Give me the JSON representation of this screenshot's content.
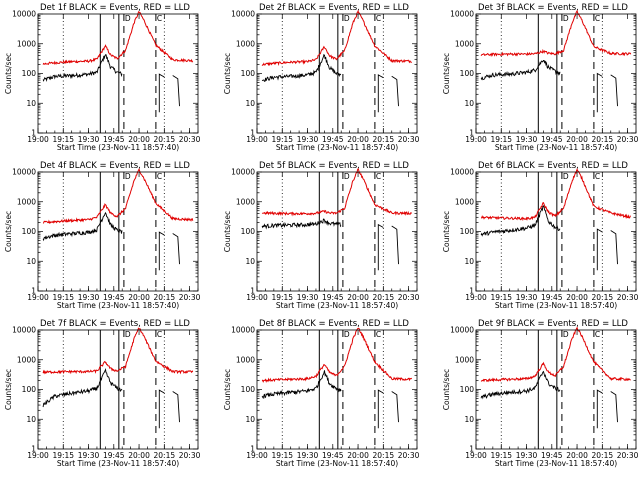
{
  "colors": {
    "events": "#000000",
    "lld": "#e00000",
    "background": "#ffffff"
  },
  "ylabel": "Counts/sec",
  "xlabel": "Start Time (23-Nov-11 18:57:40)",
  "x_tick_labels": [
    "19:00",
    "19:15",
    "19:30",
    "19:45",
    "20:00",
    "20:15",
    "20:30"
  ],
  "y_tick_labels": [
    "1",
    "10",
    "100",
    "1000",
    "10000"
  ],
  "markers": {
    "dotted": [
      "19:15",
      "20:15"
    ],
    "solid": [
      "19:37",
      "19:48"
    ],
    "dashed": [
      "19:51",
      "20:10"
    ]
  },
  "panel_letters": [
    "D",
    "C"
  ],
  "chart_data": [
    {
      "type": "line",
      "title": "Det 1f BLACK = Events, RED = LLD",
      "xlabel": "Start Time (23-Nov-11 18:57:40)",
      "ylabel": "Counts/sec",
      "yscale": "log",
      "ylim": [
        1,
        10000
      ],
      "xlim": [
        "19:00",
        "20:35"
      ],
      "series": [
        {
          "name": "Events",
          "x": [
            "19:03",
            "19:10",
            "19:20",
            "19:30",
            "19:35",
            "19:40",
            "19:43",
            "19:47",
            "19:50"
          ],
          "y": [
            60,
            80,
            85,
            95,
            110,
            450,
            170,
            110,
            95
          ]
        },
        {
          "name": "LLD",
          "x": [
            "19:03",
            "19:10",
            "19:20",
            "19:30",
            "19:35",
            "19:40",
            "19:43",
            "19:47",
            "19:52",
            "19:57",
            "20:00",
            "20:03",
            "20:10",
            "20:20",
            "20:32"
          ],
          "y": [
            210,
            230,
            250,
            260,
            300,
            850,
            420,
            320,
            600,
            5000,
            12000,
            6000,
            900,
            290,
            270
          ]
        }
      ]
    },
    {
      "type": "line",
      "title": "Det 2f BLACK = Events, RED = LLD",
      "xlabel": "Start Time (23-Nov-11 18:57:40)",
      "ylabel": "Counts/sec",
      "yscale": "log",
      "ylim": [
        1,
        10000
      ],
      "xlim": [
        "19:00",
        "20:35"
      ],
      "series": [
        {
          "name": "Events",
          "x": [
            "19:03",
            "19:10",
            "19:20",
            "19:30",
            "19:35",
            "19:40",
            "19:43",
            "19:47",
            "19:50"
          ],
          "y": [
            60,
            75,
            80,
            90,
            110,
            420,
            160,
            100,
            90
          ]
        },
        {
          "name": "LLD",
          "x": [
            "19:03",
            "19:10",
            "19:20",
            "19:30",
            "19:35",
            "19:40",
            "19:43",
            "19:47",
            "19:52",
            "19:57",
            "20:00",
            "20:03",
            "20:10",
            "20:20",
            "20:32"
          ],
          "y": [
            200,
            220,
            240,
            250,
            290,
            800,
            400,
            300,
            580,
            5000,
            12000,
            6000,
            850,
            270,
            260
          ]
        }
      ]
    },
    {
      "type": "line",
      "title": "Det 3f BLACK = Events, RED = LLD",
      "xlabel": "Start Time (23-Nov-11 18:57:40)",
      "ylabel": "Counts/sec",
      "yscale": "log",
      "ylim": [
        1,
        10000
      ],
      "xlim": [
        "19:00",
        "20:35"
      ],
      "series": [
        {
          "name": "Events",
          "x": [
            "19:03",
            "19:10",
            "19:20",
            "19:30",
            "19:35",
            "19:40",
            "19:43",
            "19:47",
            "19:50"
          ],
          "y": [
            70,
            90,
            95,
            110,
            130,
            300,
            160,
            120,
            100
          ]
        },
        {
          "name": "LLD",
          "x": [
            "19:03",
            "19:10",
            "19:20",
            "19:30",
            "19:35",
            "19:40",
            "19:43",
            "19:47",
            "19:52",
            "19:57",
            "20:00",
            "20:03",
            "20:10",
            "20:20",
            "20:32"
          ],
          "y": [
            420,
            440,
            450,
            450,
            460,
            560,
            480,
            460,
            600,
            5000,
            12000,
            6000,
            800,
            470,
            460
          ]
        }
      ]
    },
    {
      "type": "line",
      "title": "Det 4f BLACK = Events, RED = LLD",
      "xlabel": "Start Time (23-Nov-11 18:57:40)",
      "ylabel": "Counts/sec",
      "yscale": "log",
      "ylim": [
        1,
        10000
      ],
      "xlim": [
        "19:00",
        "20:35"
      ],
      "series": [
        {
          "name": "Events",
          "x": [
            "19:03",
            "19:10",
            "19:20",
            "19:30",
            "19:35",
            "19:40",
            "19:43",
            "19:47",
            "19:50"
          ],
          "y": [
            60,
            75,
            85,
            95,
            115,
            450,
            170,
            110,
            95
          ]
        },
        {
          "name": "LLD",
          "x": [
            "19:03",
            "19:10",
            "19:20",
            "19:30",
            "19:35",
            "19:40",
            "19:43",
            "19:47",
            "19:52",
            "19:57",
            "20:00",
            "20:03",
            "20:10",
            "20:20",
            "20:32"
          ],
          "y": [
            200,
            215,
            235,
            250,
            300,
            800,
            420,
            320,
            600,
            5000,
            12000,
            6000,
            900,
            270,
            250
          ]
        }
      ]
    },
    {
      "type": "line",
      "title": "Det 5f BLACK = Events, RED = LLD",
      "xlabel": "Start Time (23-Nov-11 18:57:40)",
      "ylabel": "Counts/sec",
      "yscale": "log",
      "ylim": [
        1,
        10000
      ],
      "xlim": [
        "19:00",
        "20:35"
      ],
      "series": [
        {
          "name": "Events",
          "x": [
            "19:03",
            "19:10",
            "19:20",
            "19:30",
            "19:35",
            "19:40",
            "19:43",
            "19:47",
            "19:50"
          ],
          "y": [
            150,
            160,
            165,
            170,
            180,
            240,
            190,
            175,
            170
          ]
        },
        {
          "name": "LLD",
          "x": [
            "19:03",
            "19:10",
            "19:20",
            "19:30",
            "19:35",
            "19:40",
            "19:43",
            "19:47",
            "19:52",
            "19:57",
            "20:00",
            "20:03",
            "20:10",
            "20:20",
            "20:32"
          ],
          "y": [
            420,
            410,
            400,
            400,
            410,
            480,
            420,
            410,
            600,
            5000,
            12000,
            6000,
            800,
            420,
            410
          ]
        }
      ]
    },
    {
      "type": "line",
      "title": "Det 6f BLACK = Events, RED = LLD",
      "xlabel": "Start Time (23-Nov-11 18:57:40)",
      "ylabel": "Counts/sec",
      "yscale": "log",
      "ylim": [
        1,
        10000
      ],
      "xlim": [
        "19:00",
        "20:35"
      ],
      "series": [
        {
          "name": "Events",
          "x": [
            "19:03",
            "19:10",
            "19:20",
            "19:30",
            "19:35",
            "19:40",
            "19:43",
            "19:47",
            "19:50"
          ],
          "y": [
            80,
            95,
            110,
            130,
            160,
            700,
            220,
            140,
            120
          ]
        },
        {
          "name": "LLD",
          "x": [
            "19:03",
            "19:10",
            "19:20",
            "19:30",
            "19:35",
            "19:40",
            "19:43",
            "19:47",
            "19:52",
            "19:57",
            "20:00",
            "20:03",
            "20:10",
            "20:20",
            "20:32"
          ],
          "y": [
            300,
            290,
            280,
            270,
            300,
            900,
            450,
            330,
            600,
            5000,
            12000,
            6000,
            700,
            420,
            300
          ]
        }
      ]
    },
    {
      "type": "line",
      "title": "Det 7f BLACK = Events, RED = LLD",
      "xlabel": "Start Time (23-Nov-11 18:57:40)",
      "ylabel": "Counts/sec",
      "yscale": "log",
      "ylim": [
        1,
        10000
      ],
      "xlim": [
        "19:00",
        "20:35"
      ],
      "series": [
        {
          "name": "Events",
          "x": [
            "19:03",
            "19:10",
            "19:20",
            "19:30",
            "19:35",
            "19:40",
            "19:43",
            "19:47",
            "19:50"
          ],
          "y": [
            30,
            60,
            75,
            90,
            110,
            420,
            170,
            110,
            95
          ]
        },
        {
          "name": "LLD",
          "x": [
            "19:03",
            "19:10",
            "19:20",
            "19:30",
            "19:35",
            "19:40",
            "19:43",
            "19:47",
            "19:52",
            "19:57",
            "20:00",
            "20:03",
            "20:10",
            "20:20",
            "20:32"
          ],
          "y": [
            380,
            390,
            400,
            400,
            420,
            850,
            500,
            420,
            600,
            5000,
            12000,
            6000,
            900,
            400,
            390
          ]
        }
      ]
    },
    {
      "type": "line",
      "title": "Det 8f BLACK = Events, RED = LLD",
      "xlabel": "Start Time (23-Nov-11 18:57:40)",
      "ylabel": "Counts/sec",
      "yscale": "log",
      "ylim": [
        1,
        10000
      ],
      "xlim": [
        "19:00",
        "20:35"
      ],
      "series": [
        {
          "name": "Events",
          "x": [
            "19:03",
            "19:10",
            "19:20",
            "19:30",
            "19:35",
            "19:40",
            "19:43",
            "19:47",
            "19:50"
          ],
          "y": [
            60,
            70,
            80,
            90,
            110,
            400,
            160,
            110,
            95
          ]
        },
        {
          "name": "LLD",
          "x": [
            "19:03",
            "19:10",
            "19:20",
            "19:30",
            "19:35",
            "19:40",
            "19:43",
            "19:47",
            "19:52",
            "19:57",
            "20:00",
            "20:03",
            "20:10",
            "20:20",
            "20:32"
          ],
          "y": [
            200,
            210,
            220,
            230,
            280,
            700,
            380,
            290,
            600,
            5000,
            12000,
            6000,
            850,
            230,
            220
          ]
        }
      ]
    },
    {
      "type": "line",
      "title": "Det 9f BLACK = Events, RED = LLD",
      "xlabel": "Start Time (23-Nov-11 18:57:40)",
      "ylabel": "Counts/sec",
      "yscale": "log",
      "ylim": [
        1,
        10000
      ],
      "xlim": [
        "19:00",
        "20:35"
      ],
      "series": [
        {
          "name": "Events",
          "x": [
            "19:03",
            "19:10",
            "19:20",
            "19:30",
            "19:35",
            "19:40",
            "19:43",
            "19:47",
            "19:50"
          ],
          "y": [
            55,
            70,
            80,
            90,
            110,
            420,
            160,
            110,
            95
          ]
        },
        {
          "name": "LLD",
          "x": [
            "19:03",
            "19:10",
            "19:20",
            "19:30",
            "19:35",
            "19:40",
            "19:43",
            "19:47",
            "19:52",
            "19:57",
            "20:00",
            "20:03",
            "20:10",
            "20:20",
            "20:32"
          ],
          "y": [
            200,
            210,
            220,
            230,
            280,
            750,
            380,
            290,
            600,
            5000,
            12000,
            6000,
            850,
            230,
            220
          ]
        }
      ]
    }
  ]
}
